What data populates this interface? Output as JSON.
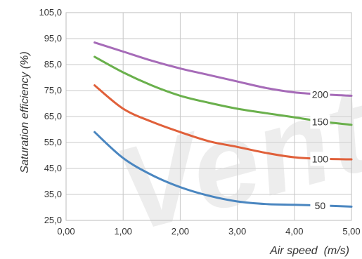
{
  "watermark": "Vent",
  "chart_data": {
    "type": "line",
    "xlabel": "Air speed  (m/s)",
    "ylabel": "Saturation efficiency (%)",
    "xlim": [
      0,
      5
    ],
    "ylim": [
      25,
      105
    ],
    "x_ticks": [
      "0,00",
      "1,00",
      "2,00",
      "3,00",
      "4,00",
      "5,00"
    ],
    "y_ticks": [
      "25,0",
      "35,0",
      "45,0",
      "55,0",
      "65,0",
      "75,0",
      "85,0",
      "95,0",
      "105,0"
    ],
    "grid": true,
    "legend": "inline labels at right end of each line",
    "series": [
      {
        "name": "200",
        "color": "#a66bb8",
        "x": [
          0.5,
          1.0,
          1.5,
          2.0,
          2.5,
          3.0,
          3.5,
          4.0,
          4.5,
          5.0
        ],
        "y": [
          93.5,
          90.0,
          86.5,
          83.5,
          81.0,
          78.5,
          76.0,
          74.3,
          73.5,
          73.0
        ]
      },
      {
        "name": "150",
        "color": "#6ab04c",
        "x": [
          0.5,
          1.0,
          1.5,
          2.0,
          2.5,
          3.0,
          3.5,
          4.0,
          4.5,
          5.0
        ],
        "y": [
          88.0,
          82.0,
          77.0,
          73.0,
          70.3,
          68.0,
          66.3,
          64.7,
          63.0,
          61.8
        ]
      },
      {
        "name": "100",
        "color": "#e0603a",
        "x": [
          0.5,
          1.0,
          1.5,
          2.0,
          2.5,
          3.0,
          3.5,
          4.0,
          4.5,
          5.0
        ],
        "y": [
          77.0,
          68.0,
          63.0,
          59.0,
          55.5,
          53.3,
          51.0,
          49.3,
          48.7,
          48.5
        ]
      },
      {
        "name": "50",
        "color": "#4a86c0",
        "x": [
          0.5,
          1.0,
          1.5,
          2.0,
          2.5,
          3.0,
          3.5,
          4.0,
          4.5,
          5.0
        ],
        "y": [
          59.0,
          49.0,
          42.5,
          37.8,
          34.5,
          32.3,
          31.3,
          31.0,
          30.7,
          30.3
        ]
      }
    ]
  }
}
